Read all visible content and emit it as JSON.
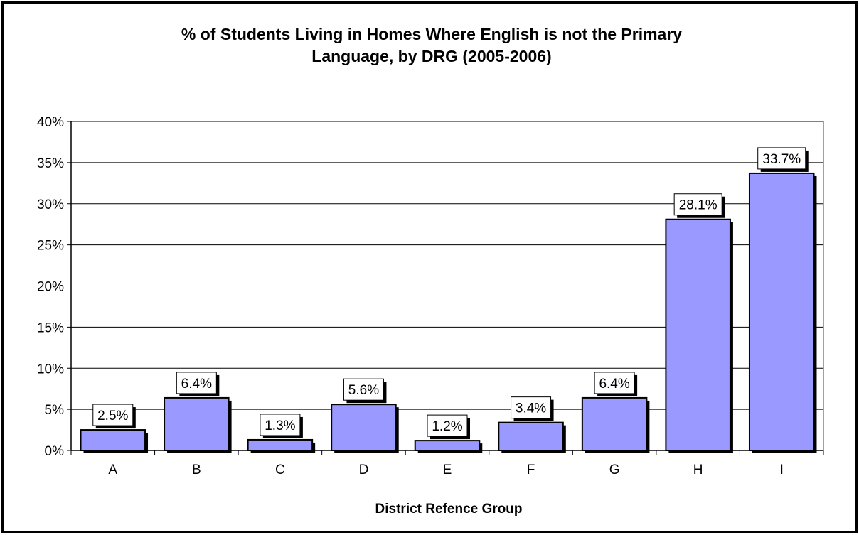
{
  "chart_data": {
    "type": "bar",
    "title_lines": [
      "% of Students Living in Homes Where English is not the Primary",
      "Language, by DRG (2005-2006)"
    ],
    "xlabel": "District Refence Group",
    "ylabel": "",
    "categories": [
      "A",
      "B",
      "C",
      "D",
      "E",
      "F",
      "G",
      "H",
      "I"
    ],
    "values": [
      2.5,
      6.4,
      1.3,
      5.6,
      1.2,
      3.4,
      6.4,
      28.1,
      33.7
    ],
    "data_labels": [
      "2.5%",
      "6.4%",
      "1.3%",
      "5.6%",
      "1.2%",
      "3.4%",
      "6.4%",
      "28.1%",
      "33.7%"
    ],
    "ylim": [
      0,
      40
    ],
    "yticks": [
      "0%",
      "5%",
      "10%",
      "15%",
      "20%",
      "25%",
      "30%",
      "35%",
      "40%"
    ],
    "grid": true,
    "legend": "none",
    "bar_color": "#9999ff"
  }
}
